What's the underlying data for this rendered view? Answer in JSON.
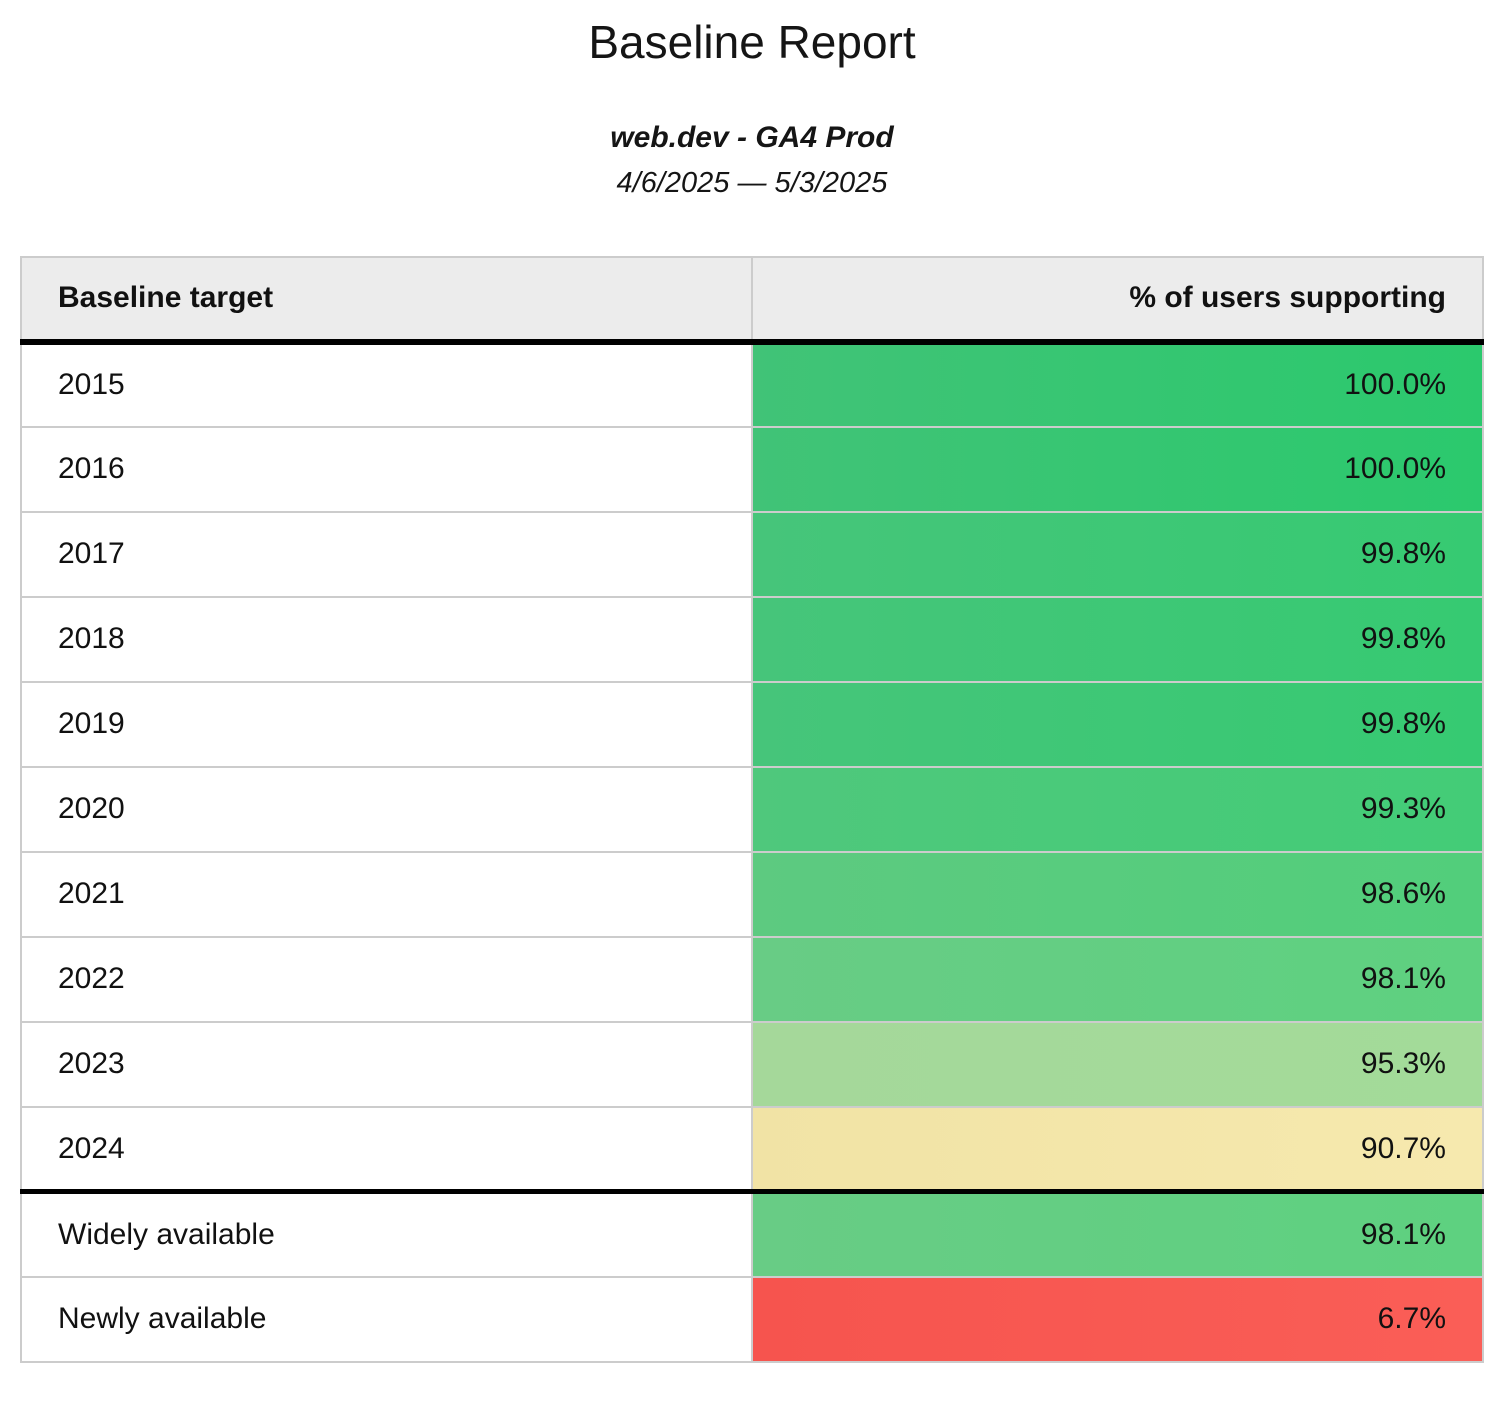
{
  "report": {
    "title": "Baseline Report",
    "property": "web.dev - GA4 Prod",
    "date_range": "4/6/2025 — 5/3/2025"
  },
  "colors": {
    "header_background": "#ececec",
    "border_light": "#cccccc",
    "border_strong": "#000000",
    "green_high": "#2bc96d",
    "green_mid": "#5ed180",
    "green_low": "#a3db99",
    "yellow": "#f4e6a8",
    "red": "#f8564f"
  },
  "table": {
    "columns": [
      "Baseline target",
      "% of users supporting"
    ],
    "rows": [
      {
        "label": "2015",
        "value": "100.0%",
        "color_left": "#41c377",
        "color_right": "#2bc96d"
      },
      {
        "label": "2016",
        "value": "100.0%",
        "color_left": "#41c377",
        "color_right": "#2bc96d"
      },
      {
        "label": "2017",
        "value": "99.8%",
        "color_left": "#46c57a",
        "color_right": "#36ca72"
      },
      {
        "label": "2018",
        "value": "99.8%",
        "color_left": "#46c57a",
        "color_right": "#36ca72"
      },
      {
        "label": "2019",
        "value": "99.8%",
        "color_left": "#46c57a",
        "color_right": "#36ca72"
      },
      {
        "label": "2020",
        "value": "99.3%",
        "color_left": "#4fc87c",
        "color_right": "#43cc77"
      },
      {
        "label": "2021",
        "value": "98.6%",
        "color_left": "#5dca80",
        "color_right": "#52ce7b"
      },
      {
        "label": "2022",
        "value": "98.1%",
        "color_left": "#68cc85",
        "color_right": "#5ed180"
      },
      {
        "label": "2023",
        "value": "95.3%",
        "color_left": "#a5d89a",
        "color_right": "#a3db99"
      },
      {
        "label": "2024",
        "value": "90.7%",
        "color_left": "#f1e3a5",
        "color_right": "#f6e9ae"
      },
      {
        "label": "Widely available",
        "value": "98.1%",
        "color_left": "#68cc85",
        "color_right": "#5ed180"
      },
      {
        "label": "Newly available",
        "value": "6.7%",
        "color_left": "#f6544e",
        "color_right": "#fa5e57"
      }
    ]
  }
}
